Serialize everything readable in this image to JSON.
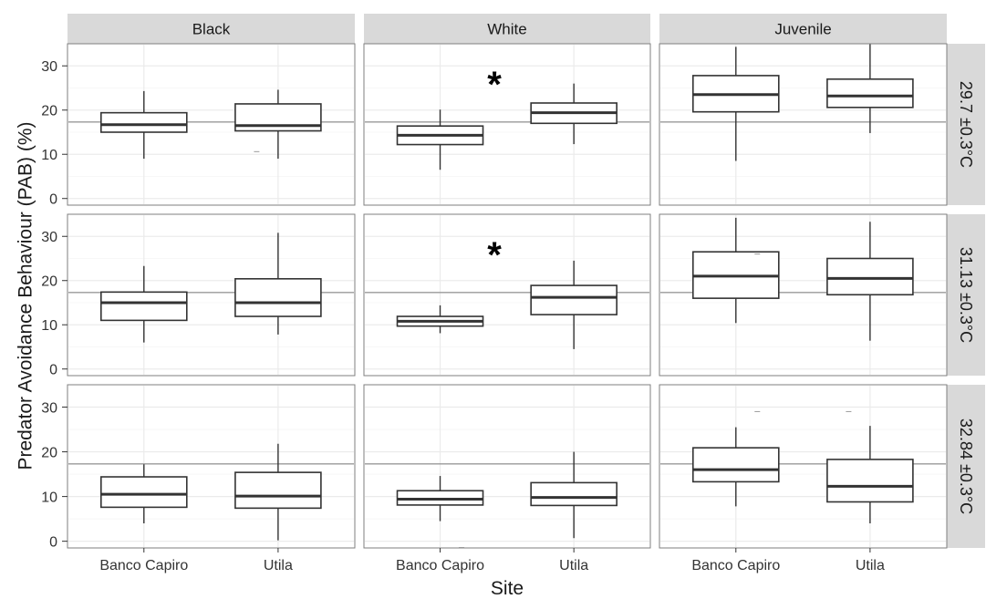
{
  "chart_data": {
    "type": "boxplot",
    "xlabel": "Site",
    "ylabel": "Predator Avoidance Behaviour (PAB) (%)",
    "ylim": [
      -1.5,
      35
    ],
    "yticks": [
      0,
      10,
      20,
      30
    ],
    "reference_line": 17.3,
    "categories": [
      "Banco Capiro",
      "Utila"
    ],
    "columns": [
      "Black",
      "White",
      "Juvenile"
    ],
    "rows": [
      "29.7 ±0.3°C",
      "31.13 ±0.3°C",
      "32.84 ±0.3°C"
    ],
    "significance_marker": "*",
    "panels": [
      {
        "row": 0,
        "col": 0,
        "significant": false,
        "boxes": [
          {
            "site": "Banco Capiro",
            "min": 9,
            "q1": 15,
            "median": 16.7,
            "q3": 19.4,
            "max": 24.3
          },
          {
            "site": "Utila",
            "min": 9,
            "q1": 15.3,
            "median": 16.5,
            "q3": 21.4,
            "max": 24.6,
            "outliers": [
              10.6
            ]
          }
        ]
      },
      {
        "row": 0,
        "col": 1,
        "significant": true,
        "boxes": [
          {
            "site": "Banco Capiro",
            "min": 6.5,
            "q1": 12.2,
            "median": 14.3,
            "q3": 16.4,
            "max": 20.1
          },
          {
            "site": "Utila",
            "min": 12.3,
            "q1": 17,
            "median": 19.4,
            "q3": 21.6,
            "max": 26
          }
        ]
      },
      {
        "row": 0,
        "col": 2,
        "significant": false,
        "boxes": [
          {
            "site": "Banco Capiro",
            "min": 8.5,
            "q1": 19.6,
            "median": 23.5,
            "q3": 27.8,
            "max": 34.3
          },
          {
            "site": "Utila",
            "min": 14.8,
            "q1": 20.6,
            "median": 23.2,
            "q3": 27,
            "max": 34.9
          }
        ]
      },
      {
        "row": 1,
        "col": 0,
        "significant": false,
        "boxes": [
          {
            "site": "Banco Capiro",
            "min": 6,
            "q1": 11,
            "median": 15,
            "q3": 17.4,
            "max": 23.3
          },
          {
            "site": "Utila",
            "min": 7.8,
            "q1": 11.9,
            "median": 15,
            "q3": 20.4,
            "max": 30.8
          }
        ]
      },
      {
        "row": 1,
        "col": 1,
        "significant": true,
        "boxes": [
          {
            "site": "Banco Capiro",
            "min": 8.1,
            "q1": 9.7,
            "median": 10.8,
            "q3": 11.9,
            "max": 14.4
          },
          {
            "site": "Utila",
            "min": 4.5,
            "q1": 12.3,
            "median": 16.2,
            "q3": 18.9,
            "max": 24.5
          }
        ]
      },
      {
        "row": 1,
        "col": 2,
        "significant": false,
        "boxes": [
          {
            "site": "Banco Capiro",
            "min": 10.4,
            "q1": 16,
            "median": 21,
            "q3": 26.5,
            "max": 34.2,
            "outliers": [
              26
            ]
          },
          {
            "site": "Utila",
            "min": 6.4,
            "q1": 16.8,
            "median": 20.5,
            "q3": 25,
            "max": 33.3
          }
        ]
      },
      {
        "row": 2,
        "col": 0,
        "significant": false,
        "boxes": [
          {
            "site": "Banco Capiro",
            "min": 4,
            "q1": 7.6,
            "median": 10.5,
            "q3": 14.4,
            "max": 17.2
          },
          {
            "site": "Utila",
            "min": 0.2,
            "q1": 7.4,
            "median": 10.1,
            "q3": 15.4,
            "max": 21.8
          }
        ]
      },
      {
        "row": 2,
        "col": 1,
        "significant": false,
        "boxes": [
          {
            "site": "Banco Capiro",
            "min": 4.5,
            "q1": 8.1,
            "median": 9.4,
            "q3": 11.3,
            "max": 14.6,
            "outliers": [
              -1.4
            ]
          },
          {
            "site": "Utila",
            "min": 0.7,
            "q1": 8,
            "median": 9.8,
            "q3": 13.1,
            "max": 20
          }
        ]
      },
      {
        "row": 2,
        "col": 2,
        "significant": false,
        "boxes": [
          {
            "site": "Banco Capiro",
            "min": 7.8,
            "q1": 13.3,
            "median": 16,
            "q3": 20.9,
            "max": 25.5,
            "outliers": [
              29
            ]
          },
          {
            "site": "Utila",
            "min": 4,
            "q1": 8.8,
            "median": 12.3,
            "q3": 18.3,
            "max": 25.8,
            "outliers": [
              29
            ]
          }
        ]
      }
    ]
  }
}
